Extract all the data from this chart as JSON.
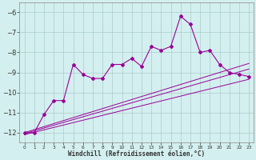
{
  "x": [
    0,
    1,
    2,
    3,
    4,
    5,
    6,
    7,
    8,
    9,
    10,
    11,
    12,
    13,
    14,
    15,
    16,
    17,
    18,
    19,
    20,
    21,
    22,
    23
  ],
  "line1": [
    -12.0,
    -12.0,
    -11.1,
    -10.4,
    -10.4,
    -8.6,
    -9.1,
    -9.3,
    -9.3,
    -8.6,
    -8.6,
    -8.3,
    -8.7,
    -7.7,
    -7.9,
    -7.7,
    -6.2,
    -6.6,
    -8.0,
    -7.9,
    -8.6,
    -9.0,
    -9.1,
    -9.2
  ],
  "reg1": [
    -12.0,
    -11.85,
    -11.7,
    -11.55,
    -11.4,
    -11.25,
    -11.1,
    -10.95,
    -10.8,
    -10.65,
    -10.5,
    -10.35,
    -10.2,
    -10.05,
    -9.9,
    -9.75,
    -9.6,
    -9.45,
    -9.3,
    -9.15,
    -9.0,
    -8.85,
    -8.7,
    -8.55
  ],
  "reg2": [
    -12.1,
    -11.98,
    -11.86,
    -11.74,
    -11.62,
    -11.5,
    -11.38,
    -11.26,
    -11.14,
    -11.02,
    -10.9,
    -10.78,
    -10.66,
    -10.54,
    -10.42,
    -10.3,
    -10.18,
    -10.06,
    -9.94,
    -9.82,
    -9.7,
    -9.58,
    -9.46,
    -9.34
  ],
  "reg3": [
    -12.05,
    -11.91,
    -11.77,
    -11.63,
    -11.49,
    -11.35,
    -11.21,
    -11.07,
    -10.93,
    -10.79,
    -10.65,
    -10.51,
    -10.37,
    -10.23,
    -10.09,
    -9.95,
    -9.81,
    -9.67,
    -9.53,
    -9.39,
    -9.25,
    -9.11,
    -8.97,
    -8.83
  ],
  "line_color": "#990099",
  "background_color": "#d4efef",
  "grid_color": "#aacccc",
  "ylim": [
    -12.5,
    -5.5
  ],
  "xlim": [
    -0.5,
    23.5
  ],
  "yticks": [
    -12,
    -11,
    -10,
    -9,
    -8,
    -7,
    -6
  ],
  "xlabel": "Windchill (Refroidissement éolien,°C)",
  "figwidth": 3.2,
  "figheight": 2.0,
  "dpi": 100
}
